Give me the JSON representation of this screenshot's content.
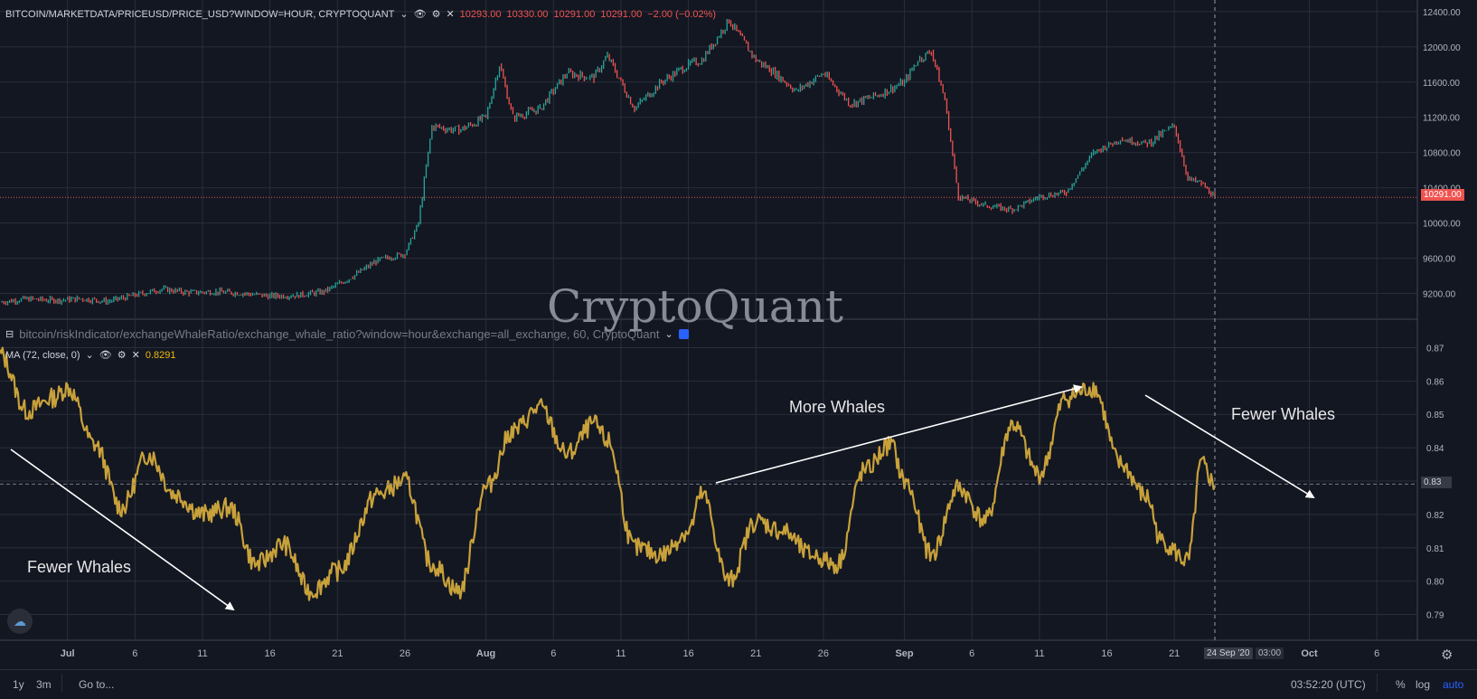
{
  "top_legend": {
    "symbol": "BITCOIN/MARKETDATA/PRICEUSD/PRICE_USD?WINDOW=HOUR, CRYPTOQUANT",
    "open": "10293.00",
    "high": "10330.00",
    "low": "10291.00",
    "close": "10291.00",
    "change": "−2.00 (−0.02%)"
  },
  "mid_legend": {
    "symbol": "bitcoin/riskIndicator/exchangeWhaleRatio/exchange_whale_ratio?window=hour&exchange=all_exchange, 60, CryptoQuant",
    "ma_label": "MA (72, close, 0)",
    "ma_value": "0.8291"
  },
  "watermark": "CryptoQuant",
  "annotations": {
    "left": "Fewer Whales",
    "middle": "More Whales",
    "right": "Fewer Whales"
  },
  "price_tag": "10291.00",
  "ratio_tag": "0.83",
  "crosshair_date": "24 Sep '20",
  "crosshair_time": "03:00",
  "footer": {
    "range_1y": "1y",
    "range_3m": "3m",
    "goto": "Go to...",
    "clock": "03:52:20 (UTC)",
    "pct": "%",
    "log": "log",
    "auto": "auto"
  },
  "colors": {
    "background": "#131722",
    "grid": "#2a2e39",
    "up": "#26a69a",
    "down": "#ef5350",
    "ma": "#c8a13a",
    "price_line": "#ef5350"
  },
  "chart_data": [
    {
      "type": "line",
      "series": [
        {
          "x": [
            "06-26",
            "06-28",
            "06-30",
            "07-02",
            "07-04",
            "07-06",
            "07-08",
            "07-10",
            "07-12",
            "07-14",
            "07-16",
            "07-18",
            "07-20",
            "07-22",
            "07-24",
            "07-26",
            "07-27",
            "07-28",
            "07-30",
            "08-01",
            "08-02",
            "08-03",
            "08-05",
            "08-07",
            "08-09",
            "08-10",
            "08-12",
            "08-14",
            "08-16",
            "08-17",
            "08-19",
            "08-21",
            "08-22",
            "08-24",
            "08-26",
            "08-28",
            "08-30",
            "09-01",
            "09-02",
            "09-03",
            "09-04",
            "09-05",
            "09-07",
            "09-09",
            "09-11",
            "09-13",
            "09-15",
            "09-17",
            "09-19",
            "09-21",
            "09-22",
            "09-23",
            "09-24"
          ],
          "values": [
            9100,
            9140,
            9120,
            9140,
            9110,
            9180,
            9250,
            9210,
            9220,
            9200,
            9170,
            9180,
            9220,
            9380,
            9580,
            9650,
            10000,
            11100,
            11050,
            11200,
            11800,
            11200,
            11300,
            11700,
            11650,
            11900,
            11300,
            11600,
            11800,
            11850,
            12300,
            11850,
            11750,
            11500,
            11700,
            11350,
            11450,
            11600,
            11850,
            11950,
            11400,
            10300,
            10200,
            10150,
            10300,
            10350,
            10800,
            10950,
            10900,
            11100,
            10500,
            10450,
            10291
          ],
          "title": "",
          "ylim": [
            9000,
            12450
          ],
          "yticks": [
            "12400.00",
            "12000.00",
            "11600.00",
            "11200.00",
            "10800.00",
            "10400.00",
            "10000.00",
            "9600.00",
            "9200.00"
          ]
        }
      ]
    },
    {
      "type": "line",
      "series": [
        {
          "x": [
            "06-26",
            "06-28",
            "06-30",
            "07-01",
            "07-03",
            "07-05",
            "07-07",
            "07-09",
            "07-11",
            "07-13",
            "07-15",
            "07-17",
            "07-19",
            "07-21",
            "07-24",
            "07-26",
            "07-28",
            "07-30",
            "08-01",
            "08-03",
            "08-05",
            "08-07",
            "08-09",
            "08-10",
            "08-12",
            "08-14",
            "08-16",
            "08-17",
            "08-19",
            "08-21",
            "08-23",
            "08-25",
            "08-27",
            "08-29",
            "08-31",
            "09-01",
            "09-03",
            "09-05",
            "09-07",
            "09-09",
            "09-11",
            "09-13",
            "09-15",
            "09-17",
            "09-19",
            "09-20",
            "09-22",
            "09-23",
            "09-24"
          ],
          "values": [
            0.868,
            0.851,
            0.855,
            0.858,
            0.841,
            0.822,
            0.838,
            0.826,
            0.82,
            0.822,
            0.805,
            0.811,
            0.797,
            0.803,
            0.826,
            0.83,
            0.805,
            0.797,
            0.828,
            0.845,
            0.852,
            0.838,
            0.847,
            0.842,
            0.81,
            0.808,
            0.815,
            0.826,
            0.8,
            0.818,
            0.815,
            0.808,
            0.805,
            0.833,
            0.841,
            0.83,
            0.808,
            0.828,
            0.818,
            0.847,
            0.832,
            0.855,
            0.858,
            0.835,
            0.825,
            0.812,
            0.806,
            0.835,
            0.829
          ],
          "ylim": [
            0.785,
            0.875
          ],
          "yticks": [
            "0.87",
            "0.86",
            "0.85",
            "0.84",
            "0.83",
            "0.82",
            "0.81",
            "0.80",
            "0.79"
          ]
        }
      ],
      "x_ticks": [
        "Jul",
        "6",
        "11",
        "16",
        "21",
        "26",
        "Aug",
        "6",
        "11",
        "16",
        "21",
        "26",
        "Sep",
        "6",
        "11",
        "16",
        "21",
        "Oct",
        "6"
      ]
    }
  ]
}
